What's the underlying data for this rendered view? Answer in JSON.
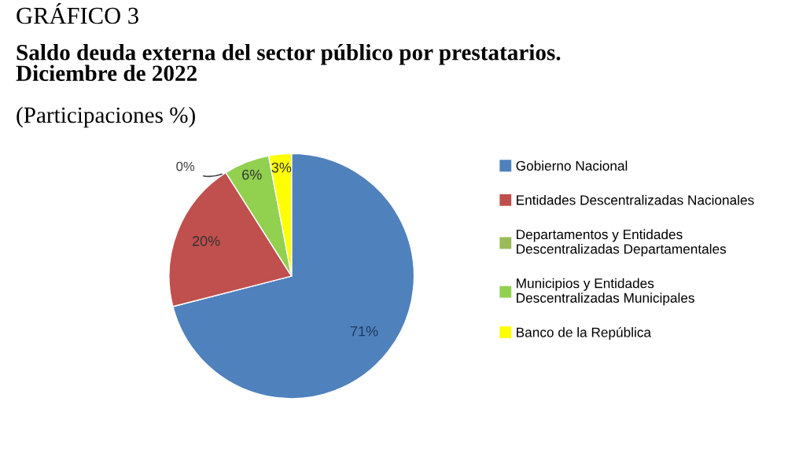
{
  "chart_data": {
    "type": "pie",
    "title": "GRÁFICO 3",
    "subtitle": "Saldo deuda externa del sector público por prestatarios.\nDiciembre de 2022",
    "annotations": [
      "(Participaciones %)"
    ],
    "categories": [
      "Gobierno Nacional",
      "Entidades Descentralizadas Nacionales",
      "Departamentos y Entidades\nDescentralizadas Departamentales",
      "Municipios y Entidades\nDescentralizadas Municipales",
      "Banco de la República"
    ],
    "values": [
      71,
      20,
      0,
      6,
      3
    ],
    "value_labels": [
      "71%",
      "20%",
      "0%",
      "6%",
      "3%"
    ],
    "colors": [
      "#4f81bd",
      "#c0504d",
      "#9bbb59",
      "#92d050",
      "#ffff00"
    ],
    "legend": "right"
  }
}
